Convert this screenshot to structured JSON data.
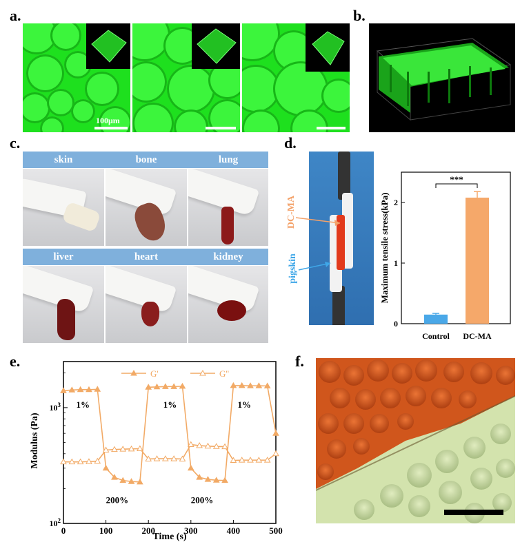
{
  "panels": {
    "a": "a.",
    "b": "b.",
    "c": "c.",
    "d": "d.",
    "e": "e.",
    "f": "f."
  },
  "panel_a": {
    "scale_label": "100μm"
  },
  "panel_c": {
    "organs": [
      "skin",
      "bone",
      "lung",
      "liver",
      "heart",
      "kidney"
    ]
  },
  "panel_d": {
    "photo_labels": {
      "dc_ma": "DC-MA",
      "pigskin": "pigskin"
    },
    "colors": {
      "dc_ma": "#f4a26a",
      "pigskin": "#3fa7e8"
    }
  },
  "chart_data": [
    {
      "type": "bar",
      "categories": [
        "Control",
        "DC-MA"
      ],
      "values": [
        0.15,
        2.08
      ],
      "errors": [
        0.02,
        0.1
      ],
      "ylabel": "Maximum tensile stress(kPa)",
      "ylim": [
        0,
        2.5
      ],
      "yticks": [
        "0",
        "1",
        "2"
      ],
      "significance": "***",
      "colors": [
        "#4aa8e8",
        "#f5a86a"
      ]
    },
    {
      "type": "line",
      "x": [
        0,
        20,
        40,
        60,
        80,
        100,
        120,
        140,
        160,
        180,
        200,
        220,
        240,
        260,
        280,
        300,
        320,
        340,
        360,
        380,
        400,
        420,
        440,
        460,
        480,
        500
      ],
      "series": [
        {
          "name": "G'",
          "values": [
            1400,
            1420,
            1430,
            1430,
            1440,
            300,
            250,
            235,
            230,
            228,
            1500,
            1510,
            1520,
            1520,
            1530,
            300,
            250,
            240,
            236,
            235,
            1550,
            1550,
            1545,
            1545,
            1540,
            600
          ]
        },
        {
          "name": "G''",
          "values": [
            340,
            340,
            340,
            342,
            345,
            430,
            435,
            438,
            440,
            442,
            360,
            362,
            362,
            362,
            360,
            480,
            470,
            465,
            462,
            460,
            350,
            352,
            352,
            352,
            352,
            400
          ]
        }
      ],
      "xlabel": "Time (s)",
      "ylabel": "Modulus (Pa)",
      "xlim": [
        0,
        500
      ],
      "ylim": [
        100,
        2500
      ],
      "yscale": "log",
      "xticks": [
        "0",
        "100",
        "200",
        "300",
        "400",
        "500"
      ],
      "annotations": [
        "1%",
        "200%",
        "1%",
        "200%",
        "1%"
      ],
      "legend_placement": "top",
      "color": "#f2aa66"
    }
  ]
}
